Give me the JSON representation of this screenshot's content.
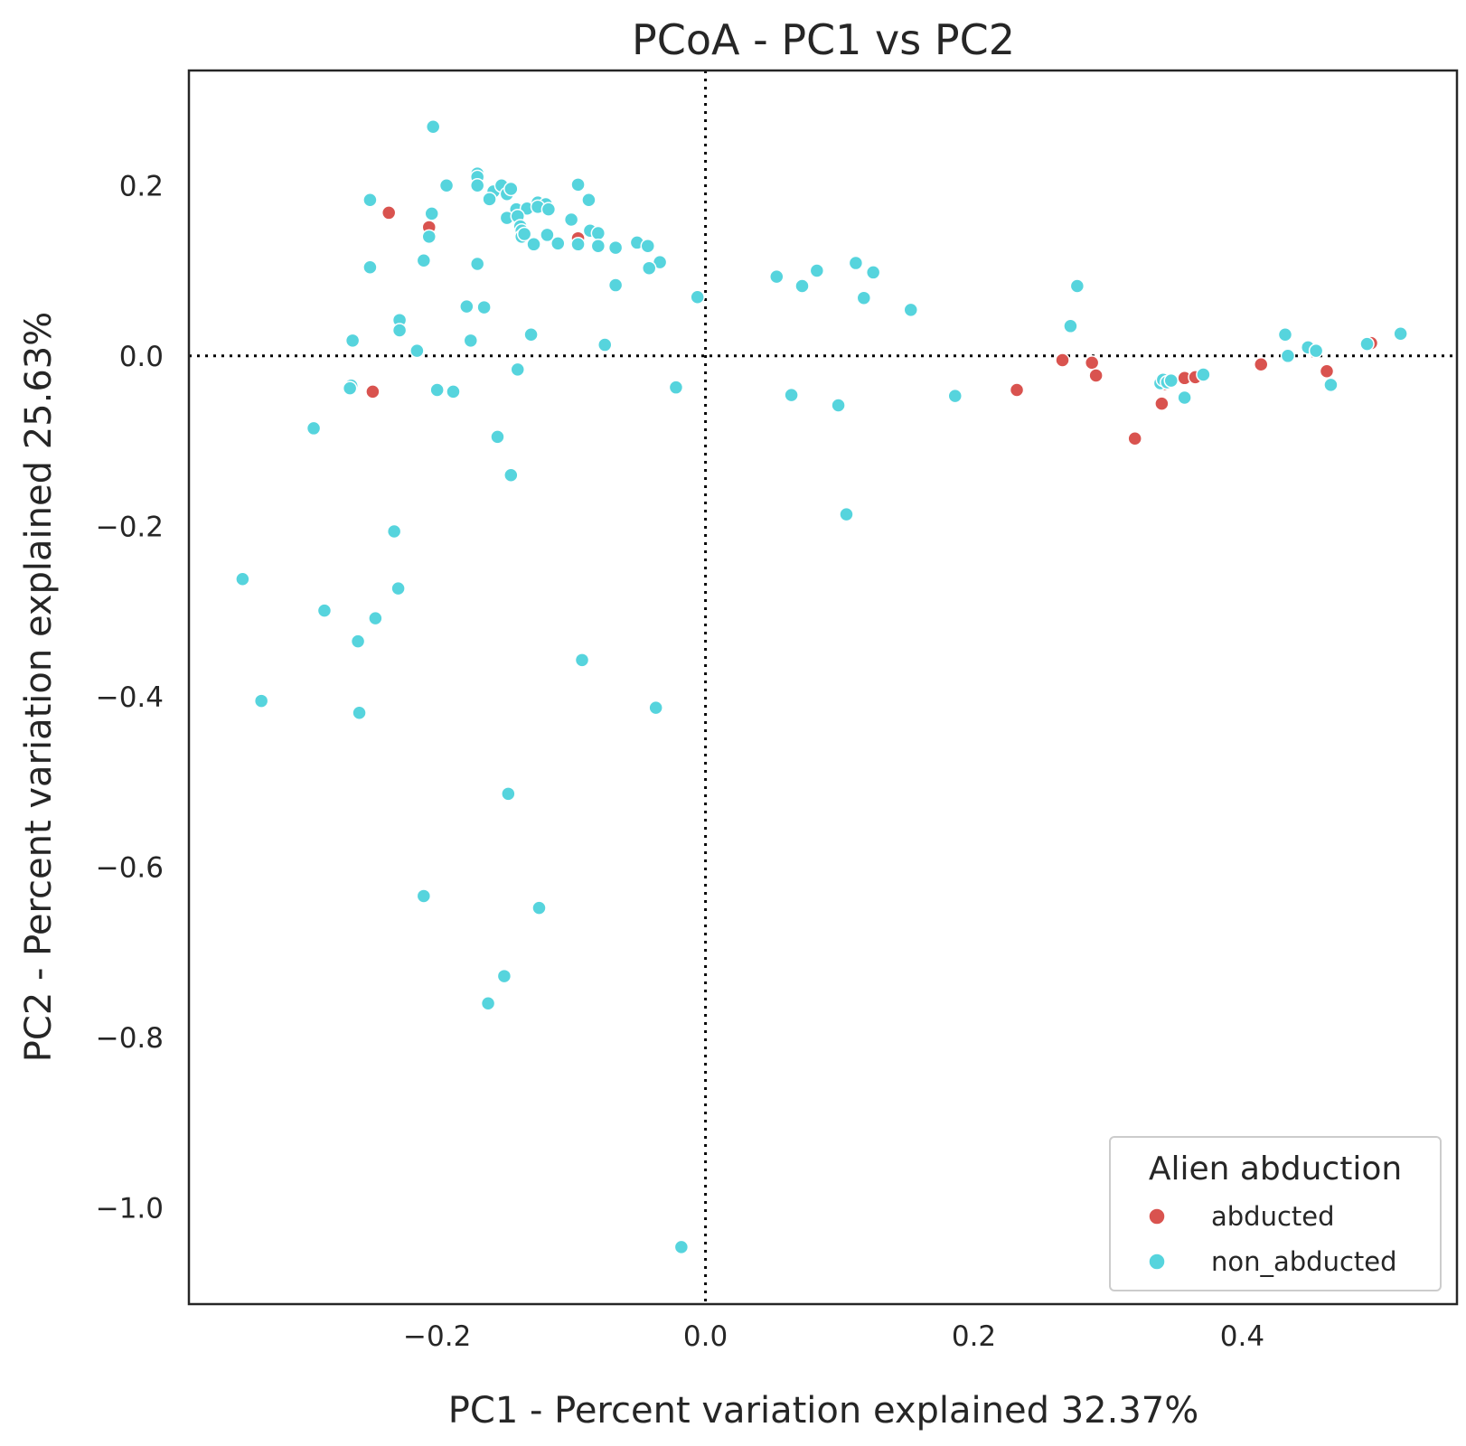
{
  "chart_data": {
    "type": "scatter",
    "title": "PCoA - PC1 vs PC2",
    "xlabel": "PC1 - Percent variation explained 32.37%",
    "ylabel": "PC2 - Percent variation explained 25.63%",
    "xlim": [
      -0.385,
      0.56
    ],
    "ylim": [
      -1.113,
      0.335
    ],
    "xticks": [
      -0.2,
      0.0,
      0.2,
      0.4
    ],
    "yticks": [
      0.2,
      0.0,
      -0.2,
      -0.4,
      -0.6,
      -0.8,
      -1.0
    ],
    "xtick_labels": [
      "−0.2",
      "0.0",
      "0.2",
      "0.4"
    ],
    "ytick_labels": [
      "0.2",
      "0.0",
      "−0.2",
      "−0.4",
      "−0.6",
      "−0.8",
      "−1.0"
    ],
    "reference_lines": {
      "x": 0.0,
      "y": 0.0,
      "style": "dotted"
    },
    "grid": false,
    "legend": {
      "title": "Alien abduction",
      "position": "lower-right"
    },
    "series": [
      {
        "name": "abducted",
        "color": "#d9534f",
        "points": [
          [
            -0.236,
            0.168
          ],
          [
            -0.206,
            0.151
          ],
          [
            -0.248,
            -0.042
          ],
          [
            -0.095,
            0.138
          ],
          [
            0.232,
            -0.04
          ],
          [
            0.266,
            -0.005
          ],
          [
            0.288,
            -0.008
          ],
          [
            0.291,
            -0.023
          ],
          [
            0.32,
            -0.097
          ],
          [
            0.34,
            -0.056
          ],
          [
            0.342,
            -0.033
          ],
          [
            0.346,
            -0.03
          ],
          [
            0.357,
            -0.026
          ],
          [
            0.365,
            -0.025
          ],
          [
            0.414,
            -0.01
          ],
          [
            0.463,
            -0.018
          ],
          [
            0.496,
            0.015
          ]
        ]
      },
      {
        "name": "non_abducted",
        "color": "#56d4dd",
        "points": [
          [
            -0.203,
            0.269
          ],
          [
            -0.25,
            0.183
          ],
          [
            -0.193,
            0.2
          ],
          [
            -0.17,
            0.214
          ],
          [
            -0.17,
            0.21
          ],
          [
            -0.17,
            0.2
          ],
          [
            -0.158,
            0.193
          ],
          [
            -0.152,
            0.2
          ],
          [
            -0.148,
            0.19
          ],
          [
            -0.145,
            0.196
          ],
          [
            -0.161,
            0.184
          ],
          [
            -0.141,
            0.172
          ],
          [
            -0.133,
            0.173
          ],
          [
            -0.125,
            0.18
          ],
          [
            -0.119,
            0.178
          ],
          [
            -0.125,
            0.175
          ],
          [
            -0.117,
            0.172
          ],
          [
            -0.095,
            0.201
          ],
          [
            -0.087,
            0.183
          ],
          [
            -0.148,
            0.162
          ],
          [
            -0.14,
            0.164
          ],
          [
            -0.138,
            0.152
          ],
          [
            -0.137,
            0.147
          ],
          [
            -0.137,
            0.14
          ],
          [
            -0.135,
            0.143
          ],
          [
            -0.118,
            0.142
          ],
          [
            -0.1,
            0.16
          ],
          [
            -0.086,
            0.147
          ],
          [
            -0.08,
            0.144
          ],
          [
            -0.204,
            0.167
          ],
          [
            -0.206,
            0.14
          ],
          [
            -0.21,
            0.112
          ],
          [
            -0.17,
            0.108
          ],
          [
            -0.25,
            0.104
          ],
          [
            -0.128,
            0.131
          ],
          [
            -0.11,
            0.132
          ],
          [
            -0.095,
            0.131
          ],
          [
            -0.08,
            0.129
          ],
          [
            -0.067,
            0.127
          ],
          [
            -0.051,
            0.133
          ],
          [
            -0.043,
            0.129
          ],
          [
            -0.034,
            0.11
          ],
          [
            -0.042,
            0.103
          ],
          [
            -0.067,
            0.083
          ],
          [
            -0.006,
            0.069
          ],
          [
            -0.178,
            0.058
          ],
          [
            -0.165,
            0.057
          ],
          [
            -0.228,
            0.042
          ],
          [
            -0.228,
            0.03
          ],
          [
            -0.175,
            0.018
          ],
          [
            -0.263,
            0.018
          ],
          [
            -0.215,
            0.006
          ],
          [
            -0.13,
            0.025
          ],
          [
            -0.075,
            0.013
          ],
          [
            -0.14,
            -0.016
          ],
          [
            -0.2,
            -0.04
          ],
          [
            -0.188,
            -0.042
          ],
          [
            -0.264,
            -0.035
          ],
          [
            -0.265,
            -0.038
          ],
          [
            -0.292,
            -0.085
          ],
          [
            -0.155,
            -0.095
          ],
          [
            -0.145,
            -0.14
          ],
          [
            -0.232,
            -0.206
          ],
          [
            -0.345,
            -0.262
          ],
          [
            -0.229,
            -0.273
          ],
          [
            -0.284,
            -0.299
          ],
          [
            -0.246,
            -0.308
          ],
          [
            -0.259,
            -0.335
          ],
          [
            -0.092,
            -0.357
          ],
          [
            -0.331,
            -0.405
          ],
          [
            -0.258,
            -0.419
          ],
          [
            -0.037,
            -0.413
          ],
          [
            -0.147,
            -0.514
          ],
          [
            -0.21,
            -0.634
          ],
          [
            -0.124,
            -0.648
          ],
          [
            -0.15,
            -0.728
          ],
          [
            -0.162,
            -0.76
          ],
          [
            -0.018,
            -1.046
          ],
          [
            -0.022,
            -0.037
          ],
          [
            0.053,
            0.093
          ],
          [
            0.072,
            0.082
          ],
          [
            0.083,
            0.1
          ],
          [
            0.112,
            0.109
          ],
          [
            0.125,
            0.098
          ],
          [
            0.118,
            0.068
          ],
          [
            0.153,
            0.054
          ],
          [
            0.064,
            -0.046
          ],
          [
            0.099,
            -0.058
          ],
          [
            0.186,
            -0.047
          ],
          [
            0.105,
            -0.186
          ],
          [
            0.277,
            0.082
          ],
          [
            0.272,
            0.035
          ],
          [
            0.339,
            -0.032
          ],
          [
            0.341,
            -0.028
          ],
          [
            0.344,
            -0.031
          ],
          [
            0.347,
            -0.029
          ],
          [
            0.357,
            -0.049
          ],
          [
            0.371,
            -0.022
          ],
          [
            0.432,
            0.025
          ],
          [
            0.434,
            0.0
          ],
          [
            0.449,
            0.01
          ],
          [
            0.455,
            0.006
          ],
          [
            0.466,
            -0.034
          ],
          [
            0.493,
            0.014
          ],
          [
            0.518,
            0.026
          ]
        ]
      }
    ]
  }
}
